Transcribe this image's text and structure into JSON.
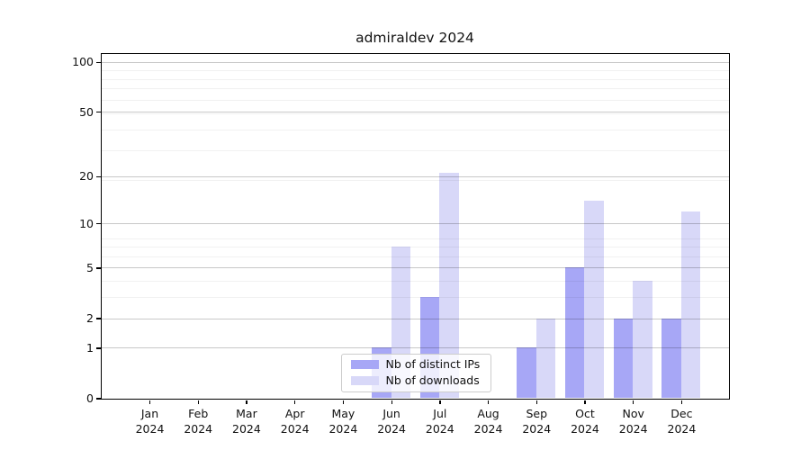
{
  "title": "admiraldev 2024",
  "chart_data": {
    "type": "bar",
    "title": "admiraldev 2024",
    "categories": [
      "Jan 2024",
      "Feb 2024",
      "Mar 2024",
      "Apr 2024",
      "May 2024",
      "Jun 2024",
      "Jul 2024",
      "Aug 2024",
      "Sep 2024",
      "Oct 2024",
      "Nov 2024",
      "Dec 2024"
    ],
    "series": [
      {
        "name": "Nb of distinct IPs",
        "color": "#a7a7f6",
        "values": [
          0,
          0,
          0,
          0,
          0,
          1,
          3,
          0,
          1,
          5,
          2,
          2
        ]
      },
      {
        "name": "Nb of downloads",
        "color": "#d8d8f8",
        "values": [
          0,
          0,
          0,
          0,
          0,
          7,
          21,
          0,
          2,
          14,
          4,
          12
        ]
      }
    ],
    "xlabel": "",
    "ylabel": "",
    "yscale": "log1p",
    "ylim": [
      0,
      116
    ],
    "ytick_values": [
      0,
      1,
      2,
      5,
      10,
      20,
      50,
      100
    ],
    "ytick_labels": [
      "0",
      "1",
      "2",
      "5",
      "10",
      "20",
      "50",
      "100"
    ],
    "minor_ytick_values": [
      3,
      4,
      6,
      7,
      8,
      19,
      29,
      39,
      49,
      59,
      69,
      79,
      89
    ],
    "grid": "horizontal major+minor, drawn above bars",
    "legend_position": "lower center"
  },
  "colors": {
    "background": "#ffffff",
    "bar_distinct_ips": "#a7a7f6",
    "bar_downloads": "#d8d8f8",
    "major_grid": "#c9c9c9",
    "minor_grid": "#f0f0f0",
    "axis": "#000000",
    "legend_border": "#cccccc"
  }
}
